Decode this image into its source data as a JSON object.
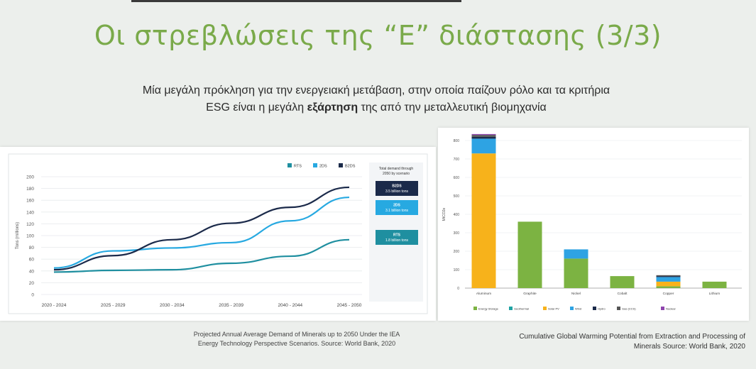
{
  "slide": {
    "title": "Οι στρεβλώσεις της “E” διάστασης (3/3)",
    "subtitle_line1": "Μία μεγάλη πρόκληση για την ενεργειακή μετάβαση, στην οποία παίζουν ρόλο και τα κριτήρια",
    "subtitle_line2_pre": "ESG είναι η μεγάλη ",
    "subtitle_line2_bold": "εξάρτηση",
    "subtitle_line2_post": " της από την μεταλλευτική βιομηχανία"
  },
  "colors": {
    "title": "#7aaa4a",
    "series_rts": "#1f8fa0",
    "series_2ds": "#27a9e1",
    "series_b2ds": "#1b2a4a",
    "energy_storage": "#7cb342",
    "geothermal": "#1fa3a3",
    "solar_pv": "#f7b21b",
    "wind": "#2ea3e3",
    "hydro": "#1b2a4a",
    "gas_ccs": "#555555",
    "nuclear": "#8e44ad"
  },
  "captions": {
    "left_line1": "Projected Annual Average Demand of Minerals up to 2050 Under the IEA",
    "left_line2": "Energy Technology Perspective Scenarios. Source: World Bank, 2020",
    "right_line1": "Cumulative Global Warming Potential from Extraction and Processing of",
    "right_line2": "Minerals Source: World Bank, 2020"
  },
  "chart_data": [
    {
      "type": "line",
      "title": "",
      "xlabel": "",
      "ylabel": "Tons (millions)",
      "ylim": [
        0,
        200
      ],
      "yticks": [
        0,
        20,
        40,
        60,
        80,
        100,
        120,
        140,
        160,
        180,
        200
      ],
      "categories": [
        "2020 - 2024",
        "2025 - 2029",
        "2030 - 2034",
        "2035 - 2039",
        "2040 - 2044",
        "2045 - 2050"
      ],
      "series": [
        {
          "name": "RTS",
          "values": [
            38,
            41,
            42,
            53,
            65,
            93
          ]
        },
        {
          "name": "2DS",
          "values": [
            45,
            74,
            79,
            88,
            125,
            165
          ]
        },
        {
          "name": "B2DS",
          "values": [
            42,
            66,
            93,
            121,
            148,
            182
          ]
        }
      ],
      "legend_position": "top-right",
      "side_box": {
        "title": "Total demand through 2050 by scenario",
        "items": [
          {
            "scenario": "B2DS",
            "amount": "3.5 billion tons"
          },
          {
            "scenario": "2DS",
            "amount": "3.1 billion tons"
          },
          {
            "scenario": "RTS",
            "amount": "1.8 billion tons"
          }
        ]
      },
      "grid": true
    },
    {
      "type": "bar",
      "stacked": true,
      "title": "",
      "ylabel": "MtCO2e",
      "ylim": [
        0,
        800
      ],
      "yticks": [
        0,
        100,
        200,
        300,
        400,
        500,
        600,
        700,
        800
      ],
      "categories": [
        "Aluminum",
        "Graphite",
        "Nickel",
        "Cobalt",
        "Copper",
        "Lithium"
      ],
      "series": [
        {
          "name": "Energy Storage",
          "values": [
            0,
            360,
            160,
            65,
            10,
            35
          ]
        },
        {
          "name": "Geothermal",
          "values": [
            0,
            0,
            0,
            0,
            0,
            0
          ]
        },
        {
          "name": "Solar PV",
          "values": [
            730,
            0,
            0,
            0,
            25,
            0
          ]
        },
        {
          "name": "Wind",
          "values": [
            80,
            0,
            50,
            0,
            25,
            0
          ]
        },
        {
          "name": "Hydro",
          "values": [
            10,
            0,
            0,
            0,
            5,
            0
          ]
        },
        {
          "name": "Gas (CCS)",
          "values": [
            10,
            0,
            0,
            0,
            5,
            0
          ]
        },
        {
          "name": "Nuclear",
          "values": [
            5,
            0,
            0,
            0,
            0,
            0
          ]
        }
      ],
      "legend_position": "bottom",
      "grid": true
    }
  ]
}
